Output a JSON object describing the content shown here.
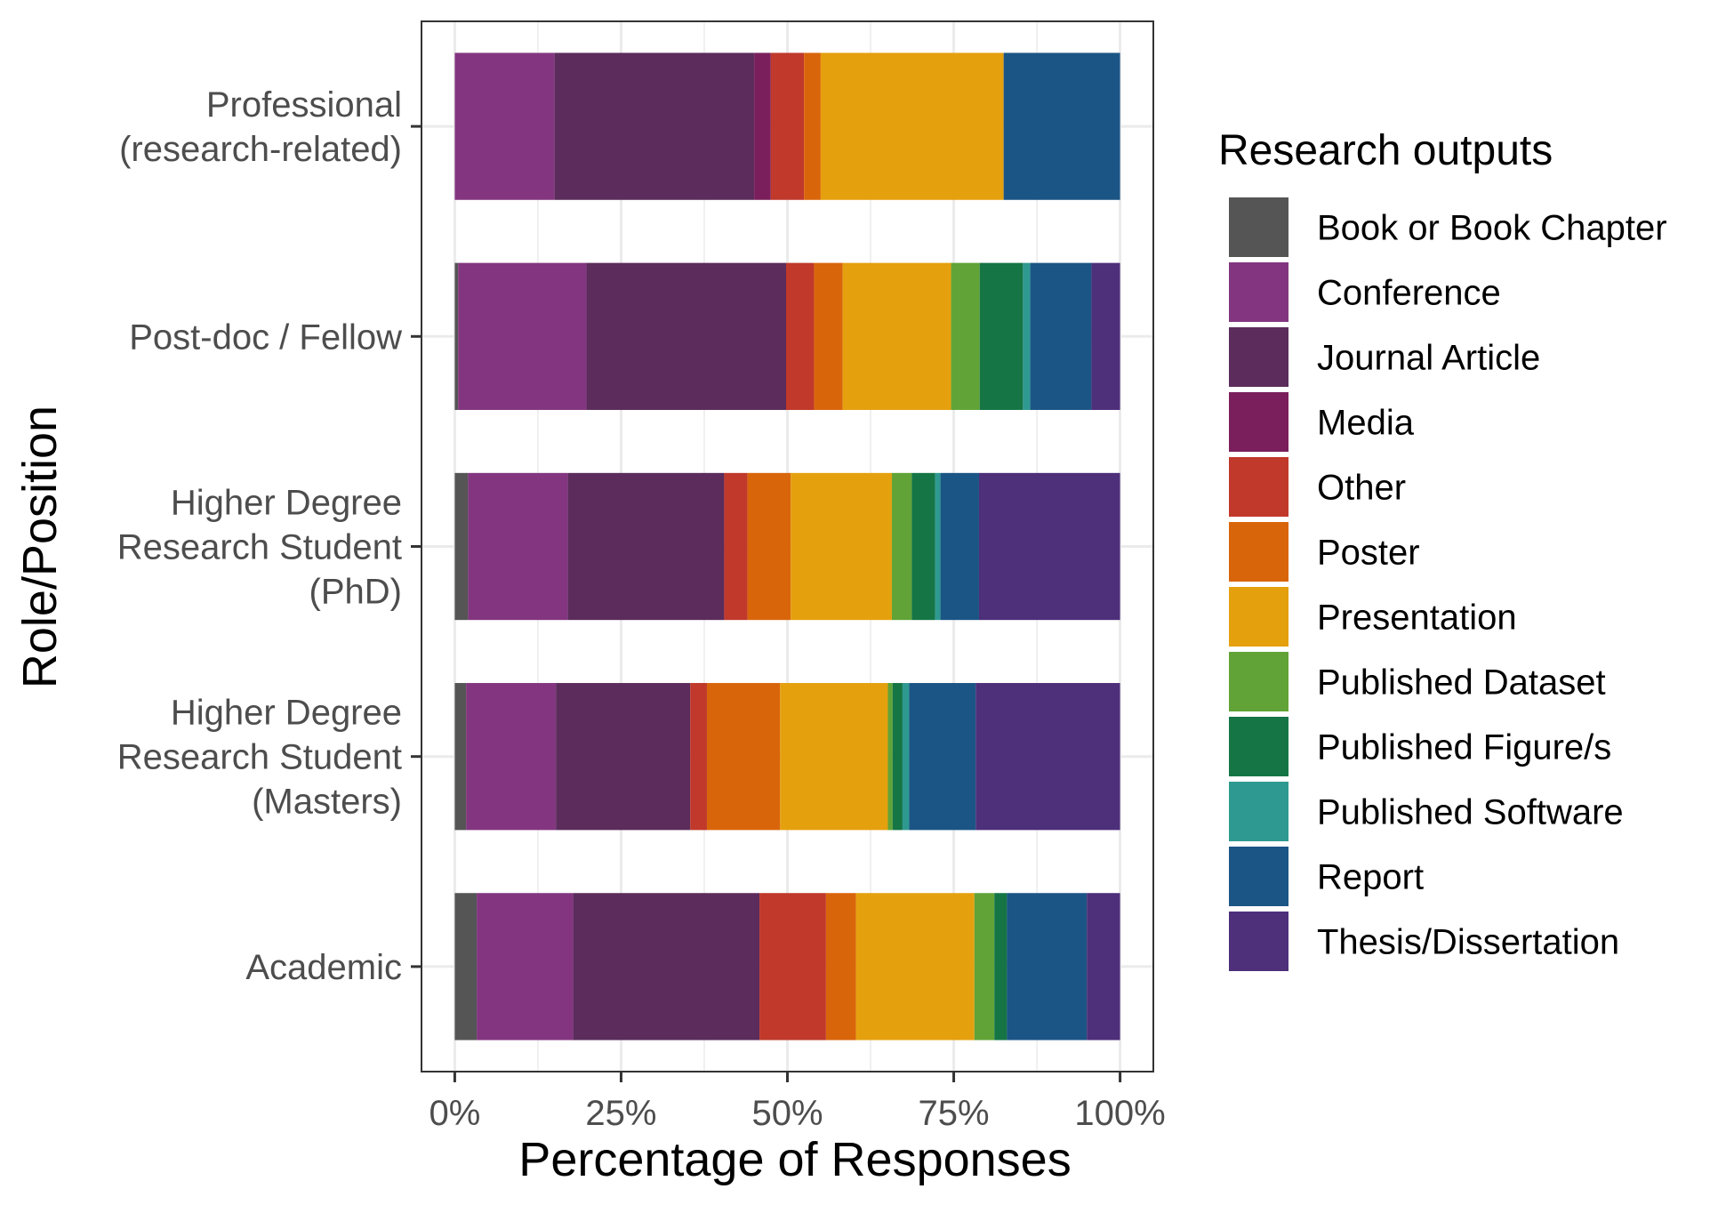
{
  "chart_data": {
    "type": "bar",
    "orientation": "horizontal",
    "stacked": true,
    "normalized": true,
    "xlabel": "Percentage of Responses",
    "ylabel": "Role/Position",
    "xlim": [
      -0.05,
      1.05
    ],
    "x_ticks": [
      0,
      0.25,
      0.5,
      0.75,
      1.0
    ],
    "x_tick_labels": [
      "0%",
      "25%",
      "50%",
      "75%",
      "100%"
    ],
    "grid": true,
    "legend": {
      "title": "Research outputs",
      "position": "right"
    },
    "categories": [
      [
        "Professional",
        "(research-related)"
      ],
      [
        "Post-doc / Fellow"
      ],
      [
        "Higher Degree",
        "Research Student",
        "(PhD)"
      ],
      [
        "Higher Degree",
        "Research Student",
        "(Masters)"
      ],
      [
        "Academic"
      ]
    ],
    "series": [
      {
        "name": "Book or Book Chapter",
        "color": "#555555",
        "values": [
          0.0,
          0.005,
          0.02,
          0.017,
          0.033
        ]
      },
      {
        "name": "Conference",
        "color": "#83367F",
        "values": [
          0.15,
          0.193,
          0.15,
          0.135,
          0.145
        ]
      },
      {
        "name": "Journal Article",
        "color": "#5B2C5C",
        "values": [
          0.3,
          0.3,
          0.235,
          0.202,
          0.28
        ]
      },
      {
        "name": "Media",
        "color": "#7A1F5C",
        "values": [
          0.025,
          0.0,
          0.0,
          0.0,
          0.0
        ]
      },
      {
        "name": "Other",
        "color": "#C0392B",
        "values": [
          0.05,
          0.042,
          0.035,
          0.025,
          0.1
        ]
      },
      {
        "name": "Poster",
        "color": "#D9650B",
        "values": [
          0.025,
          0.043,
          0.065,
          0.11,
          0.045
        ]
      },
      {
        "name": "Presentation",
        "color": "#E5A00E",
        "values": [
          0.275,
          0.163,
          0.152,
          0.162,
          0.178
        ]
      },
      {
        "name": "Published Dataset",
        "color": "#61A337",
        "values": [
          0.0,
          0.043,
          0.03,
          0.007,
          0.03
        ]
      },
      {
        "name": "Published Figure/s",
        "color": "#157545",
        "values": [
          0.0,
          0.065,
          0.035,
          0.015,
          0.019
        ]
      },
      {
        "name": "Published Software",
        "color": "#2E9990",
        "values": [
          0.0,
          0.011,
          0.008,
          0.01,
          0.0
        ]
      },
      {
        "name": "Report",
        "color": "#1B5585",
        "values": [
          0.175,
          0.092,
          0.058,
          0.1,
          0.12
        ]
      },
      {
        "name": "Thesis/Dissertation",
        "color": "#4D2F7A",
        "values": [
          0.0,
          0.043,
          0.212,
          0.217,
          0.05
        ]
      }
    ]
  }
}
